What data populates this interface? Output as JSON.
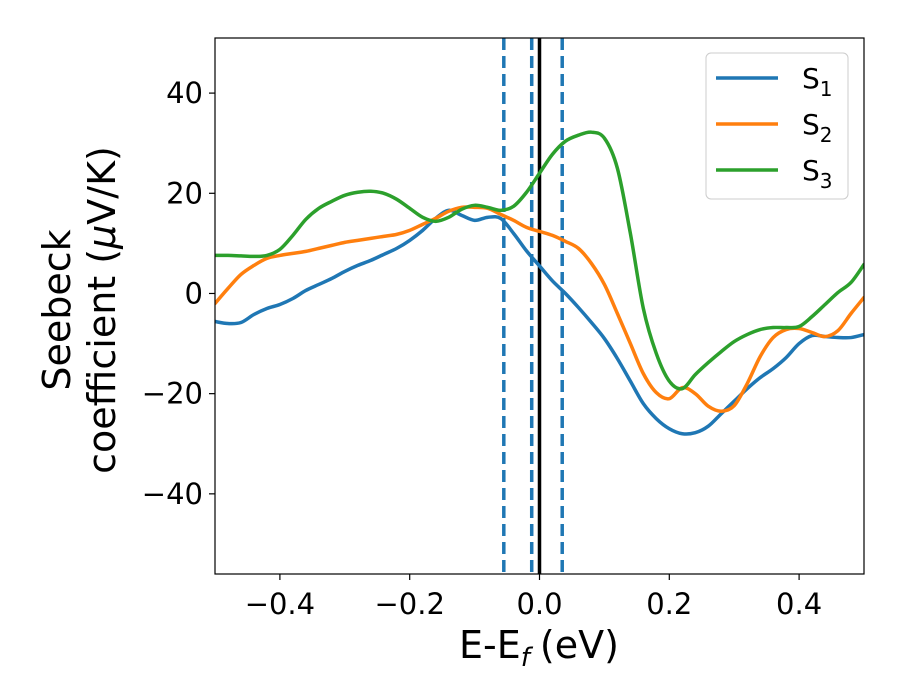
{
  "chart_data": {
    "type": "line",
    "xlabel": "E-E",
    "xlabel_sub": "f",
    "xlabel_unit": "(eV)",
    "ylabel_line1": "Seebeck",
    "ylabel_line2_prefix": "coefficient  (",
    "ylabel_mu": "μ",
    "ylabel_line2_suffix": "V/K)",
    "xlim": [
      -0.5,
      0.5
    ],
    "ylim": [
      -56,
      51
    ],
    "xticks": [
      -0.4,
      -0.2,
      0.0,
      0.2,
      0.4
    ],
    "xtick_labels": [
      "−0.4",
      "−0.2",
      "0.0",
      "0.2",
      "0.4"
    ],
    "yticks": [
      40,
      20,
      0,
      -20,
      -40
    ],
    "ytick_labels": [
      "40",
      "20",
      "0",
      "−20",
      "−40"
    ],
    "grid": false,
    "legend_position": "top-right",
    "series": [
      {
        "name": "S",
        "sub": "1",
        "color": "#1f77b4",
        "x": [
          -0.5,
          -0.48,
          -0.46,
          -0.44,
          -0.42,
          -0.4,
          -0.38,
          -0.36,
          -0.34,
          -0.32,
          -0.3,
          -0.28,
          -0.26,
          -0.24,
          -0.22,
          -0.2,
          -0.18,
          -0.16,
          -0.14,
          -0.12,
          -0.1,
          -0.08,
          -0.06,
          -0.04,
          -0.02,
          0.0,
          0.02,
          0.04,
          0.06,
          0.08,
          0.1,
          0.12,
          0.14,
          0.16,
          0.18,
          0.2,
          0.22,
          0.24,
          0.26,
          0.28,
          0.3,
          0.32,
          0.34,
          0.36,
          0.38,
          0.4,
          0.42,
          0.44,
          0.46,
          0.48,
          0.5
        ],
        "y": [
          -5.6,
          -6.0,
          -5.8,
          -4.2,
          -3.0,
          -2.2,
          -1.0,
          0.6,
          1.8,
          3.0,
          4.4,
          5.6,
          6.6,
          7.8,
          9.0,
          10.6,
          12.6,
          15.0,
          16.6,
          15.6,
          14.6,
          15.2,
          15.0,
          12.0,
          8.5,
          5.5,
          2.5,
          0.0,
          -2.8,
          -5.8,
          -9.0,
          -13.0,
          -17.5,
          -22.0,
          -25.0,
          -27.0,
          -28.0,
          -27.8,
          -26.5,
          -24.0,
          -21.5,
          -19.0,
          -16.8,
          -15.0,
          -12.8,
          -10.0,
          -8.4,
          -8.6,
          -8.8,
          -8.8,
          -8.2
        ]
      },
      {
        "name": "S",
        "sub": "2",
        "color": "#ff7f0e",
        "x": [
          -0.5,
          -0.48,
          -0.46,
          -0.44,
          -0.42,
          -0.4,
          -0.38,
          -0.36,
          -0.34,
          -0.32,
          -0.3,
          -0.28,
          -0.26,
          -0.24,
          -0.22,
          -0.2,
          -0.18,
          -0.16,
          -0.14,
          -0.12,
          -0.1,
          -0.08,
          -0.06,
          -0.04,
          -0.02,
          0.0,
          0.02,
          0.04,
          0.06,
          0.08,
          0.1,
          0.12,
          0.14,
          0.16,
          0.18,
          0.2,
          0.22,
          0.24,
          0.26,
          0.28,
          0.3,
          0.32,
          0.34,
          0.36,
          0.38,
          0.4,
          0.42,
          0.44,
          0.46,
          0.48,
          0.5
        ],
        "y": [
          -2.0,
          1.0,
          3.8,
          5.6,
          7.0,
          7.6,
          8.0,
          8.4,
          9.0,
          9.6,
          10.2,
          10.6,
          11.0,
          11.4,
          11.8,
          12.6,
          13.8,
          15.0,
          16.4,
          17.2,
          17.2,
          17.0,
          15.8,
          14.6,
          13.2,
          12.4,
          11.6,
          10.4,
          9.0,
          6.0,
          1.8,
          -4.0,
          -10.0,
          -16.0,
          -19.8,
          -21.0,
          -18.8,
          -20.0,
          -22.5,
          -23.5,
          -22.4,
          -18.0,
          -12.6,
          -8.8,
          -7.2,
          -7.0,
          -7.8,
          -8.6,
          -7.4,
          -4.0,
          -0.8
        ]
      },
      {
        "name": "S",
        "sub": "3",
        "color": "#2ca02c",
        "x": [
          -0.5,
          -0.48,
          -0.46,
          -0.44,
          -0.42,
          -0.4,
          -0.38,
          -0.36,
          -0.34,
          -0.32,
          -0.3,
          -0.28,
          -0.26,
          -0.24,
          -0.22,
          -0.2,
          -0.18,
          -0.16,
          -0.14,
          -0.12,
          -0.1,
          -0.08,
          -0.06,
          -0.04,
          -0.02,
          0.0,
          0.02,
          0.04,
          0.06,
          0.08,
          0.1,
          0.12,
          0.14,
          0.16,
          0.18,
          0.2,
          0.22,
          0.24,
          0.26,
          0.28,
          0.3,
          0.32,
          0.34,
          0.36,
          0.38,
          0.4,
          0.42,
          0.44,
          0.46,
          0.48,
          0.5
        ],
        "y": [
          7.6,
          7.6,
          7.5,
          7.4,
          7.6,
          8.8,
          11.6,
          14.8,
          17.0,
          18.4,
          19.6,
          20.2,
          20.4,
          20.0,
          18.8,
          17.0,
          15.2,
          14.4,
          15.2,
          16.8,
          17.6,
          17.2,
          16.6,
          17.4,
          20.2,
          24.0,
          27.8,
          30.4,
          31.6,
          32.2,
          31.0,
          25.0,
          12.0,
          -3.0,
          -12.0,
          -17.5,
          -19.0,
          -16.2,
          -13.8,
          -11.6,
          -9.6,
          -8.2,
          -7.2,
          -6.8,
          -6.8,
          -6.6,
          -4.6,
          -2.2,
          0.2,
          2.2,
          5.8
        ]
      }
    ],
    "vlines": [
      {
        "x": -0.055,
        "style": "dashed",
        "color": "#1f77b4"
      },
      {
        "x": -0.012,
        "style": "dashed",
        "color": "#1f77b4"
      },
      {
        "x": 0.0,
        "style": "solid",
        "color": "#000000"
      },
      {
        "x": 0.035,
        "style": "dashed",
        "color": "#1f77b4"
      }
    ]
  }
}
